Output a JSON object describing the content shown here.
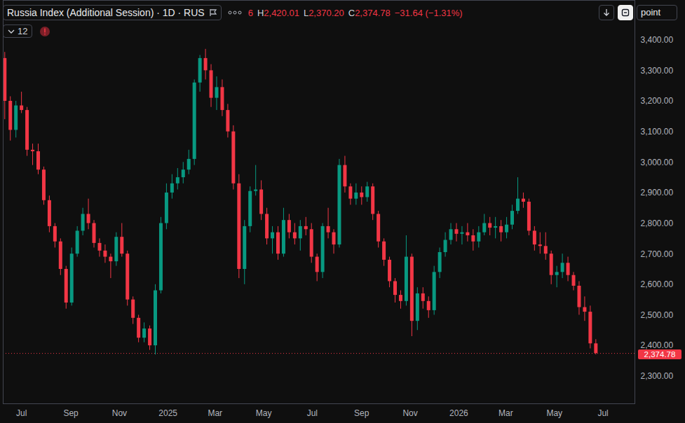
{
  "header": {
    "title_line": "Russia Index (Additional Session) · 1D · RUS",
    "ohlc_fragment": "6",
    "high_letter": "H",
    "high": "2,420.01",
    "low_letter": "L",
    "low": "2,370.20",
    "close_letter": "C",
    "close": "2,374.78",
    "change": "−31.64 (−1.31%)",
    "indicator_count": "12",
    "unit_button": "point"
  },
  "chart_data": {
    "type": "candlestick",
    "x": [
      "2024-06-10",
      "2024-06-17",
      "2024-06-24",
      "2024-07-01",
      "2024-07-08",
      "2024-07-15",
      "2024-07-22",
      "2024-07-29",
      "2024-08-05",
      "2024-08-12",
      "2024-08-19",
      "2024-08-26",
      "2024-09-02",
      "2024-09-09",
      "2024-09-16",
      "2024-09-23",
      "2024-09-30",
      "2024-10-07",
      "2024-10-14",
      "2024-10-21",
      "2024-10-28",
      "2024-11-04",
      "2024-11-11",
      "2024-11-18",
      "2024-11-25",
      "2024-12-02",
      "2024-12-09",
      "2024-12-16",
      "2024-12-23",
      "2024-12-30",
      "2025-01-06",
      "2025-01-13",
      "2025-01-20",
      "2025-01-27",
      "2025-02-03",
      "2025-02-10",
      "2025-02-17",
      "2025-02-24",
      "2025-03-03",
      "2025-03-10",
      "2025-03-17",
      "2025-03-24",
      "2025-03-31",
      "2025-04-07",
      "2025-04-14",
      "2025-04-21",
      "2025-04-28",
      "2025-05-05",
      "2025-05-12",
      "2025-05-19",
      "2025-05-26",
      "2025-06-02",
      "2025-06-09",
      "2025-06-16",
      "2025-06-23",
      "2025-06-30",
      "2025-07-07",
      "2025-07-14",
      "2025-07-21",
      "2025-07-28",
      "2025-08-04",
      "2025-08-11",
      "2025-08-18",
      "2025-08-25",
      "2025-09-01",
      "2025-09-08",
      "2025-09-15",
      "2025-09-22",
      "2025-09-29",
      "2025-10-06",
      "2025-10-13",
      "2025-10-20",
      "2025-10-27",
      "2025-11-03",
      "2025-11-10",
      "2025-11-17",
      "2025-11-24",
      "2025-12-01",
      "2025-12-08",
      "2025-12-15",
      "2025-12-22",
      "2025-12-29",
      "2026-01-05",
      "2026-01-12",
      "2026-01-19",
      "2026-01-26",
      "2026-02-02",
      "2026-02-09",
      "2026-02-16",
      "2026-02-23",
      "2026-03-02",
      "2026-03-09",
      "2026-03-16",
      "2026-03-23",
      "2026-03-30",
      "2026-04-06",
      "2026-04-13",
      "2026-04-20",
      "2026-04-27",
      "2026-05-04",
      "2026-05-11",
      "2026-05-18",
      "2026-05-25",
      "2026-06-01",
      "2026-06-08",
      "2026-06-15",
      "2026-06-22"
    ],
    "open": [
      3340,
      3200,
      3105,
      3185,
      3170,
      3040,
      3035,
      2975,
      2875,
      2790,
      2740,
      2650,
      2540,
      2700,
      2775,
      2830,
      2800,
      2735,
      2710,
      2690,
      2675,
      2755,
      2700,
      2550,
      2490,
      2425,
      2455,
      2400,
      2580,
      2800,
      2900,
      2930,
      2950,
      2975,
      3010,
      3260,
      3340,
      3300,
      3210,
      3245,
      3170,
      3100,
      2930,
      2650,
      2790,
      2905,
      2910,
      2830,
      2750,
      2770,
      2700,
      2810,
      2770,
      2750,
      2790,
      2780,
      2690,
      2640,
      2790,
      2770,
      2730,
      2990,
      2920,
      2880,
      2900,
      2885,
      2920,
      2830,
      2740,
      2680,
      2610,
      2565,
      2545,
      2690,
      2480,
      2570,
      2545,
      2515,
      2640,
      2705,
      2745,
      2780,
      2765,
      2770,
      2760,
      2740,
      2770,
      2800,
      2785,
      2790,
      2770,
      2795,
      2840,
      2880,
      2870,
      2775,
      2730,
      2725,
      2700,
      2630,
      2640,
      2670,
      2630,
      2595,
      2525,
      2510,
      2406.42
    ],
    "high": [
      3360,
      3215,
      3200,
      3230,
      3180,
      3060,
      3060,
      2985,
      2890,
      2800,
      2750,
      2660,
      2720,
      2790,
      2850,
      2880,
      2810,
      2750,
      2730,
      2700,
      2770,
      2800,
      2710,
      2560,
      2500,
      2475,
      2465,
      2600,
      2820,
      2930,
      2960,
      2980,
      3000,
      3040,
      3270,
      3350,
      3370,
      3320,
      3280,
      3270,
      3190,
      3120,
      2960,
      2810,
      2920,
      2990,
      2940,
      2850,
      2790,
      2790,
      2850,
      2830,
      2800,
      2810,
      2820,
      2800,
      2700,
      2800,
      2850,
      2780,
      3010,
      3020,
      2930,
      2930,
      2920,
      2935,
      2930,
      2840,
      2750,
      2690,
      2620,
      2580,
      2760,
      2700,
      2590,
      2590,
      2560,
      2660,
      2720,
      2770,
      2800,
      2800,
      2790,
      2800,
      2780,
      2790,
      2830,
      2820,
      2820,
      2810,
      2820,
      2860,
      2950,
      2900,
      2880,
      2790,
      2770,
      2770,
      2710,
      2660,
      2700,
      2690,
      2640,
      2610,
      2560,
      2530,
      2420.01
    ],
    "low": [
      3140,
      3070,
      3080,
      3160,
      3020,
      2990,
      2960,
      2860,
      2770,
      2720,
      2630,
      2520,
      2530,
      2690,
      2760,
      2780,
      2720,
      2690,
      2670,
      2620,
      2660,
      2690,
      2530,
      2470,
      2410,
      2410,
      2385,
      2370,
      2570,
      2780,
      2880,
      2910,
      2930,
      2960,
      2990,
      3230,
      3270,
      3180,
      3170,
      3150,
      3080,
      2910,
      2620,
      2600,
      2770,
      2890,
      2810,
      2730,
      2700,
      2680,
      2690,
      2750,
      2730,
      2710,
      2760,
      2670,
      2610,
      2620,
      2750,
      2700,
      2720,
      2900,
      2860,
      2860,
      2860,
      2870,
      2810,
      2720,
      2660,
      2590,
      2540,
      2520,
      2530,
      2430,
      2450,
      2520,
      2490,
      2500,
      2620,
      2690,
      2730,
      2740,
      2730,
      2740,
      2710,
      2720,
      2760,
      2760,
      2750,
      2740,
      2750,
      2780,
      2830,
      2850,
      2760,
      2710,
      2700,
      2680,
      2600,
      2590,
      2620,
      2610,
      2580,
      2500,
      2480,
      2390,
      2370.2
    ],
    "close": [
      3200,
      3105,
      3185,
      3170,
      3040,
      3035,
      2975,
      2875,
      2790,
      2740,
      2650,
      2540,
      2700,
      2775,
      2830,
      2800,
      2735,
      2710,
      2690,
      2675,
      2755,
      2700,
      2550,
      2490,
      2425,
      2455,
      2400,
      2580,
      2800,
      2900,
      2930,
      2950,
      2975,
      3010,
      3260,
      3340,
      3300,
      3210,
      3245,
      3170,
      3100,
      2930,
      2650,
      2790,
      2905,
      2910,
      2830,
      2750,
      2770,
      2700,
      2810,
      2770,
      2750,
      2790,
      2780,
      2690,
      2640,
      2790,
      2770,
      2730,
      2990,
      2920,
      2880,
      2900,
      2885,
      2920,
      2830,
      2740,
      2680,
      2610,
      2565,
      2545,
      2690,
      2480,
      2570,
      2545,
      2515,
      2640,
      2705,
      2745,
      2780,
      2765,
      2770,
      2760,
      2740,
      2770,
      2800,
      2785,
      2790,
      2770,
      2795,
      2840,
      2880,
      2870,
      2775,
      2730,
      2725,
      2700,
      2630,
      2640,
      2670,
      2630,
      2595,
      2525,
      2510,
      2406.42,
      2374.78
    ],
    "color": {
      "up": "#089981",
      "down": "#f23645"
    },
    "xlim": [
      "2024-06-08",
      "2026-08-10"
    ],
    "xticks": [
      {
        "value": "2024-07-01",
        "label": "Jul"
      },
      {
        "value": "2024-09-01",
        "label": "Sep"
      },
      {
        "value": "2024-11-01",
        "label": "Nov"
      },
      {
        "value": "2025-01-01",
        "label": "2025"
      },
      {
        "value": "2025-03-01",
        "label": "Mar"
      },
      {
        "value": "2025-05-01",
        "label": "May"
      },
      {
        "value": "2025-07-01",
        "label": "Jul"
      },
      {
        "value": "2025-09-01",
        "label": "Sep"
      },
      {
        "value": "2025-11-01",
        "label": "Nov"
      },
      {
        "value": "2026-01-01",
        "label": "2026"
      },
      {
        "value": "2026-03-01",
        "label": "Mar"
      },
      {
        "value": "2026-05-01",
        "label": "May"
      },
      {
        "value": "2026-07-01",
        "label": "Jul"
      }
    ],
    "ylim": [
      2210,
      3530
    ],
    "yticks": [
      {
        "value": 2300,
        "label": "2,300.00"
      },
      {
        "value": 2400,
        "label": "2,400.00"
      },
      {
        "value": 2500,
        "label": "2,500.00"
      },
      {
        "value": 2600,
        "label": "2,600.00"
      },
      {
        "value": 2700,
        "label": "2,700.00"
      },
      {
        "value": 2800,
        "label": "2,800.00"
      },
      {
        "value": 2900,
        "label": "2,900.00"
      },
      {
        "value": 3000,
        "label": "3,000.00"
      },
      {
        "value": 3100,
        "label": "3,100.00"
      },
      {
        "value": 3200,
        "label": "3,200.00"
      },
      {
        "value": 3300,
        "label": "3,300.00"
      },
      {
        "value": 3400,
        "label": "3,400.00"
      }
    ],
    "grid": false,
    "last_price": {
      "value": 2374.78,
      "label": "2,374.78"
    }
  }
}
